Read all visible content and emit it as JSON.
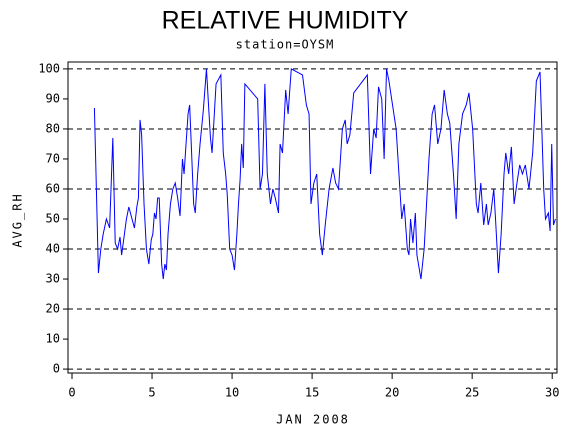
{
  "chart_data": {
    "type": "line",
    "title": "RELATIVE HUMIDITY",
    "subtitle": "station=OYSM",
    "y_label": "AVG_RH",
    "x_label": "JAN 2008",
    "color": "#0000ff",
    "xlim": [
      -0.25,
      30.3
    ],
    "ylim": [
      -1.3,
      102.3
    ],
    "xticks": [
      0,
      5,
      10,
      15,
      20,
      25,
      30
    ],
    "yticks": [
      0,
      10,
      20,
      30,
      40,
      50,
      60,
      70,
      80,
      90,
      100
    ],
    "grid_lines": [
      0,
      20,
      40,
      60,
      80,
      100
    ],
    "x": [
      1.4,
      1.65,
      1.8,
      1.95,
      2.15,
      2.35,
      2.55,
      2.7,
      2.85,
      3.0,
      3.1,
      3.25,
      3.4,
      3.55,
      3.75,
      3.9,
      4.05,
      4.15,
      4.25,
      4.35,
      4.5,
      4.65,
      4.8,
      4.95,
      5.05,
      5.15,
      5.25,
      5.35,
      5.45,
      5.6,
      5.7,
      5.8,
      5.9,
      6.0,
      6.15,
      6.3,
      6.45,
      6.6,
      6.75,
      6.9,
      7.0,
      7.1,
      7.25,
      7.35,
      7.45,
      7.6,
      7.7,
      7.85,
      8.0,
      8.2,
      8.4,
      8.55,
      8.65,
      8.75,
      9.0,
      9.3,
      9.45,
      9.6,
      9.7,
      9.85,
      10.0,
      10.15,
      10.3,
      10.4,
      10.5,
      10.6,
      10.7,
      10.8,
      11.6,
      11.75,
      11.9,
      12.05,
      12.2,
      12.4,
      12.55,
      12.7,
      12.9,
      13.0,
      13.15,
      13.35,
      13.5,
      13.7,
      14.4,
      14.64,
      14.81,
      14.93,
      15.11,
      15.29,
      15.47,
      15.64,
      15.82,
      16.06,
      16.3,
      16.47,
      16.65,
      16.89,
      17.07,
      17.19,
      17.36,
      17.6,
      18.45,
      18.65,
      18.85,
      19.0,
      19.15,
      19.35,
      19.5,
      19.65,
      19.8,
      20.25,
      20.6,
      20.75,
      20.95,
      21.05,
      21.15,
      21.3,
      21.45,
      21.55,
      21.8,
      22.0,
      22.15,
      22.3,
      22.5,
      22.65,
      22.85,
      23.05,
      23.25,
      23.45,
      23.6,
      23.83,
      24.0,
      24.17,
      24.4,
      24.63,
      24.8,
      25.03,
      25.26,
      25.37,
      25.54,
      25.72,
      25.89,
      26.0,
      26.17,
      26.35,
      26.46,
      26.64,
      26.81,
      26.99,
      27.1,
      27.28,
      27.45,
      27.62,
      27.8,
      27.97,
      28.14,
      28.32,
      28.55,
      28.78,
      29.01,
      29.24,
      29.47,
      29.58,
      29.76,
      29.87,
      29.97,
      30.08,
      30.2
    ],
    "values": [
      87,
      32,
      40,
      45,
      50,
      47,
      77,
      42,
      40,
      44,
      38,
      44,
      50,
      54,
      50,
      47,
      54,
      57,
      83,
      78,
      55,
      40,
      35,
      43,
      45,
      52,
      50,
      57,
      57,
      35,
      30,
      35,
      33,
      45,
      55,
      60,
      62,
      57,
      51,
      70,
      65,
      73,
      85,
      88,
      75,
      55,
      52,
      65,
      75,
      86,
      100,
      86,
      77,
      72,
      95,
      98,
      72,
      65,
      58,
      40,
      38,
      33,
      45,
      55,
      63,
      75,
      67,
      95,
      90,
      60,
      65,
      95,
      65,
      55,
      60,
      57,
      52,
      75,
      72,
      93,
      85,
      100,
      98,
      88,
      85,
      55,
      62,
      65,
      45,
      38,
      48,
      60,
      67,
      62,
      60,
      80,
      83,
      75,
      78,
      92,
      98,
      65,
      80,
      77,
      94,
      90,
      70,
      100,
      96,
      80,
      50,
      55,
      40,
      38,
      50,
      42,
      52,
      38,
      30,
      40,
      55,
      70,
      85,
      88,
      75,
      80,
      93,
      85,
      82,
      65,
      50,
      75,
      85,
      88,
      92,
      80,
      55,
      52,
      62,
      48,
      55,
      48,
      52,
      60,
      50,
      32,
      45,
      65,
      72,
      65,
      74,
      55,
      62,
      68,
      65,
      68,
      60,
      72,
      96,
      99,
      60,
      50,
      52,
      46,
      75,
      48,
      50
    ]
  }
}
